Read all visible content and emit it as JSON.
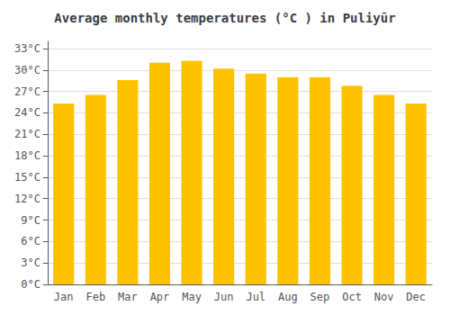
{
  "chart_data": {
    "type": "bar",
    "title": "Average monthly temperatures (°C ) in Puliyūr",
    "categories": [
      "Jan",
      "Feb",
      "Mar",
      "Apr",
      "May",
      "Jun",
      "Jul",
      "Aug",
      "Sep",
      "Oct",
      "Nov",
      "Dec"
    ],
    "values": [
      25.3,
      26.5,
      28.6,
      31.0,
      31.3,
      30.2,
      29.5,
      29.0,
      29.0,
      27.8,
      26.5,
      25.3
    ],
    "color": "#FFC200",
    "ylim": [
      0,
      34
    ],
    "yticks": [
      {
        "value": 0,
        "label": "0°C"
      },
      {
        "value": 3,
        "label": "3°C"
      },
      {
        "value": 6,
        "label": "6°C"
      },
      {
        "value": 9,
        "label": "9°C"
      },
      {
        "value": 12,
        "label": "12°C"
      },
      {
        "value": 15,
        "label": "15°C"
      },
      {
        "value": 18,
        "label": "18°C"
      },
      {
        "value": 21,
        "label": "21°C"
      },
      {
        "value": 24,
        "label": "24°C"
      },
      {
        "value": 27,
        "label": "27°C"
      },
      {
        "value": 30,
        "label": "30°C"
      },
      {
        "value": 33,
        "label": "33°C"
      }
    ],
    "grid": true
  }
}
